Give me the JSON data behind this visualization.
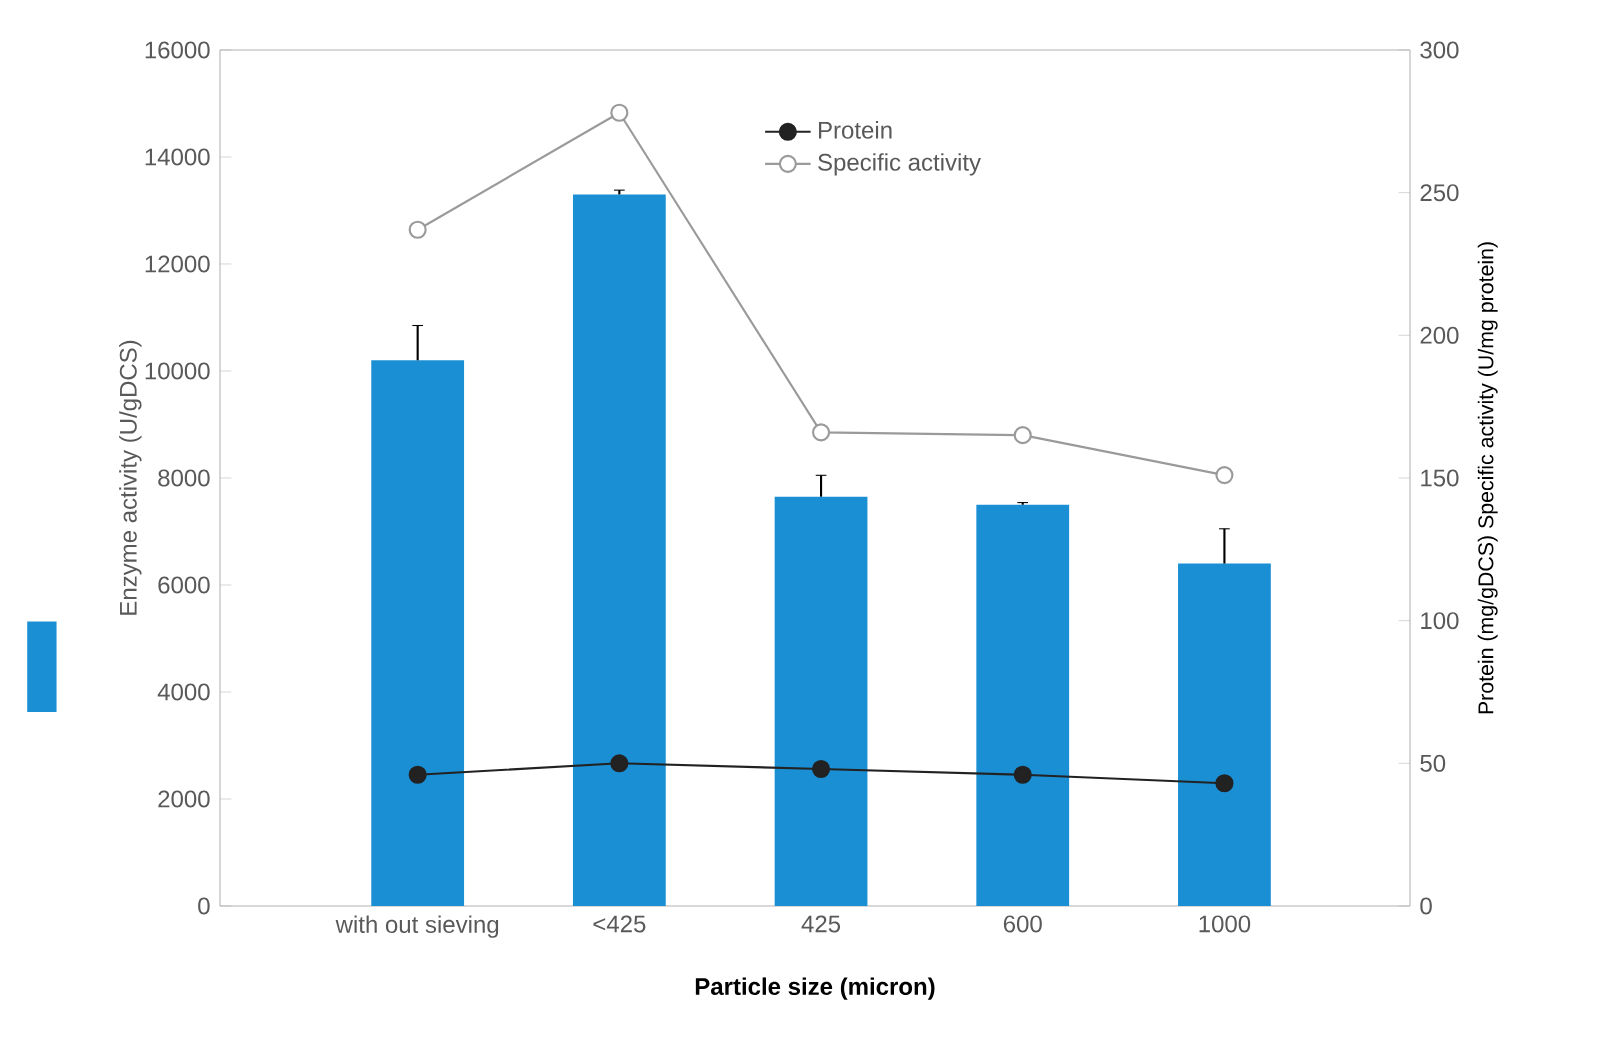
{
  "chart_data": {
    "type": "bar",
    "xlabel": "Particle size (micron)",
    "ylabel": "Enzyme activity (U/gDCS)",
    "y2label": "Protein (mg/gDCS) Specific activity (U/mg protein)",
    "categories": [
      "with out sieving",
      "<425",
      "425",
      "600",
      "1000"
    ],
    "series": [
      {
        "color": "#1b8fd4",
        "values": [
          10200,
          13300,
          7650,
          7500,
          6400
        ],
        "errors": [
          650,
          80,
          400,
          40,
          650
        ]
      },
      {
        "type": "line",
        "axis": "y2",
        "name": "Protein",
        "color": "#222222",
        "marker": "circle",
        "values": [
          46,
          50,
          48,
          46,
          43
        ]
      },
      {
        "type": "line",
        "axis": "y2",
        "name": "Specific activity",
        "color": "#9a9a9a",
        "marker": "circle",
        "values": [
          237,
          278,
          166,
          165,
          151
        ]
      }
    ],
    "ylim": [
      0,
      16000
    ],
    "yticks": [
      0,
      2000,
      4000,
      6000,
      8000,
      10000,
      12000,
      14000,
      16000
    ],
    "y2lim": [
      0,
      300
    ],
    "y2ticks": [
      0,
      50,
      100,
      150,
      200,
      250,
      300
    ],
    "legend": "top right"
  }
}
